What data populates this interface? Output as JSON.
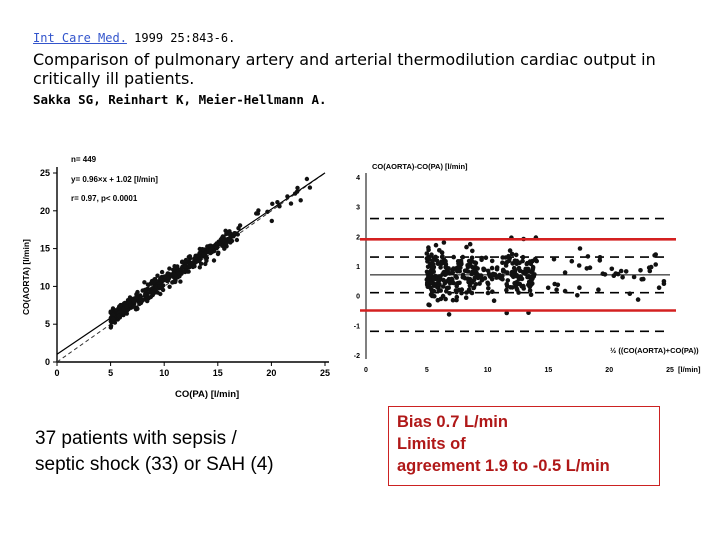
{
  "citation": {
    "journal": "Int Care Med.",
    "ref": " 1999 25:843-6."
  },
  "title": "Comparison of pulmonary artery and arterial thermodilution cardiac output in critically ill patients.",
  "authors": "Sakka SG, Reinhart K, Meier-Hellmann A.",
  "notes": {
    "left_line1": "37 patients with sepsis /",
    "left_line2": "septic shock (33) or SAH (4)",
    "right_line1": "Bias 0.7 L/min",
    "right_line2": "Limits of",
    "right_line3": "agreement 1.9 to -0.5 L/min"
  },
  "colors": {
    "limit_lines": "#d42020",
    "note_text": "#b01818",
    "link": "#3355cc"
  },
  "chart_data": [
    {
      "type": "scatter",
      "title": "",
      "xlabel": "CO(PA) [l/min]",
      "ylabel": "CO(AORTA) [l/min]",
      "xlim": [
        0,
        25
      ],
      "ylim": [
        0,
        25
      ],
      "xticks": [
        "0",
        "5",
        "10",
        "15",
        "20",
        "25"
      ],
      "yticks": [
        "0",
        "5",
        "10",
        "15",
        "20",
        "25"
      ],
      "annotations": [
        "n= 449",
        "y= 0.96×x + 1.02 [l/min]",
        "r= 0.97, p< 0.0001"
      ],
      "regression": {
        "slope": 0.96,
        "intercept": 1.02
      },
      "identity_line": true,
      "n": 449
    },
    {
      "type": "scatter",
      "title": "",
      "ylabel": "CO(AORTA)-CO(PA) [l/min]",
      "xlabel": "½ ((CO(AORTA)+CO(PA))",
      "xunit": "[l/min]",
      "xlim": [
        0,
        25
      ],
      "ylim": [
        -2,
        4
      ],
      "xticks": [
        "0",
        "5",
        "10",
        "15",
        "20",
        "25"
      ],
      "yticks": [
        "4",
        "3",
        "2",
        "1",
        "0",
        "-1",
        "-2"
      ],
      "bias": 0.7,
      "limits_of_agreement": [
        1.9,
        -0.5
      ],
      "reference_lines": [
        2.6,
        1.9,
        1.3,
        0.7,
        0.1,
        -0.5,
        -1.2
      ],
      "highlight_lines": [
        1.9,
        -0.5
      ]
    }
  ]
}
